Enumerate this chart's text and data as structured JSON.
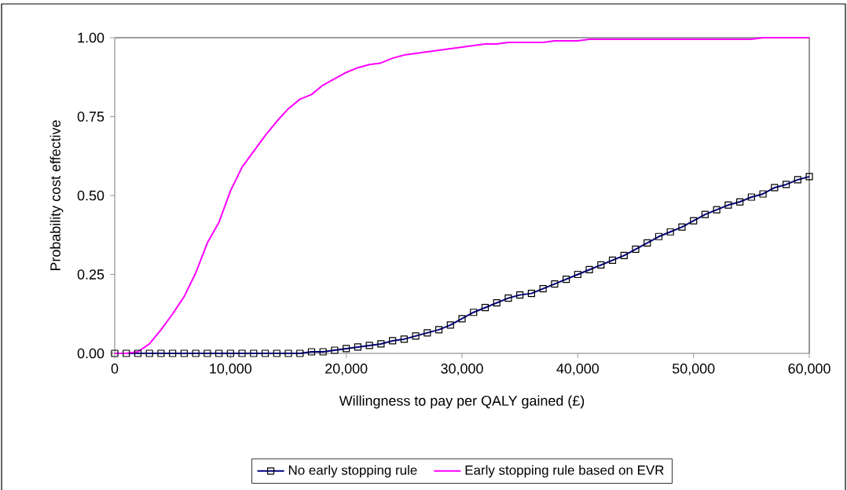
{
  "chart_data": {
    "type": "line",
    "xlabel": "Willingness to pay per QALY gained (£)",
    "ylabel": "Probability cost effective",
    "xlim": [
      0,
      60000
    ],
    "ylim": [
      0,
      1
    ],
    "xticks": [
      0,
      {
        "value": 10000,
        "label": "10,000"
      },
      {
        "value": 20000,
        "label": "20,000"
      },
      {
        "value": 30000,
        "label": "30,000"
      },
      {
        "value": 40000,
        "label": "40,000"
      },
      {
        "value": 50000,
        "label": "50,000"
      },
      {
        "value": 60000,
        "label": "60,000"
      }
    ],
    "yticks": [
      {
        "value": 0,
        "label": "0.00"
      },
      {
        "value": 0.25,
        "label": "0.25"
      },
      {
        "value": 0.5,
        "label": "0.50"
      },
      {
        "value": 0.75,
        "label": "0.75"
      },
      {
        "value": 1,
        "label": "1.00"
      }
    ],
    "x": [
      0,
      1000,
      2000,
      3000,
      4000,
      5000,
      6000,
      7000,
      8000,
      9000,
      10000,
      11000,
      12000,
      13000,
      14000,
      15000,
      16000,
      17000,
      18000,
      19000,
      20000,
      21000,
      22000,
      23000,
      24000,
      25000,
      26000,
      27000,
      28000,
      29000,
      30000,
      31000,
      32000,
      33000,
      34000,
      35000,
      36000,
      37000,
      38000,
      39000,
      40000,
      41000,
      42000,
      43000,
      44000,
      45000,
      46000,
      47000,
      48000,
      49000,
      50000,
      51000,
      52000,
      53000,
      54000,
      55000,
      56000,
      57000,
      58000,
      59000,
      60000
    ],
    "series": [
      {
        "name": "No early stopping rule",
        "color": "#000080",
        "marker": "square",
        "values": [
          0,
          0,
          0,
          0,
          0,
          0,
          0,
          0,
          0,
          0,
          0,
          0,
          0,
          0,
          0,
          0,
          0,
          0.005,
          0.005,
          0.01,
          0.015,
          0.02,
          0.025,
          0.03,
          0.04,
          0.045,
          0.055,
          0.065,
          0.075,
          0.09,
          0.11,
          0.13,
          0.145,
          0.16,
          0.175,
          0.185,
          0.19,
          0.205,
          0.22,
          0.235,
          0.25,
          0.265,
          0.28,
          0.295,
          0.31,
          0.33,
          0.35,
          0.37,
          0.385,
          0.4,
          0.42,
          0.44,
          0.455,
          0.47,
          0.48,
          0.495,
          0.505,
          0.525,
          0.535,
          0.55,
          0.56
        ]
      },
      {
        "name": "Early stopping rule based on EVR",
        "color": "#ff00ff",
        "marker": "none",
        "values": [
          0,
          0,
          0.005,
          0.03,
          0.075,
          0.125,
          0.18,
          0.255,
          0.35,
          0.415,
          0.515,
          0.59,
          0.64,
          0.69,
          0.735,
          0.775,
          0.805,
          0.82,
          0.85,
          0.87,
          0.89,
          0.905,
          0.915,
          0.92,
          0.935,
          0.945,
          0.95,
          0.955,
          0.96,
          0.965,
          0.97,
          0.975,
          0.98,
          0.98,
          0.985,
          0.985,
          0.985,
          0.985,
          0.99,
          0.99,
          0.99,
          0.995,
          0.995,
          0.995,
          0.995,
          0.995,
          0.995,
          0.995,
          0.995,
          0.995,
          0.995,
          0.995,
          0.995,
          0.995,
          0.995,
          0.995,
          1,
          1,
          1,
          1,
          1
        ]
      }
    ],
    "legend": "bottom"
  }
}
